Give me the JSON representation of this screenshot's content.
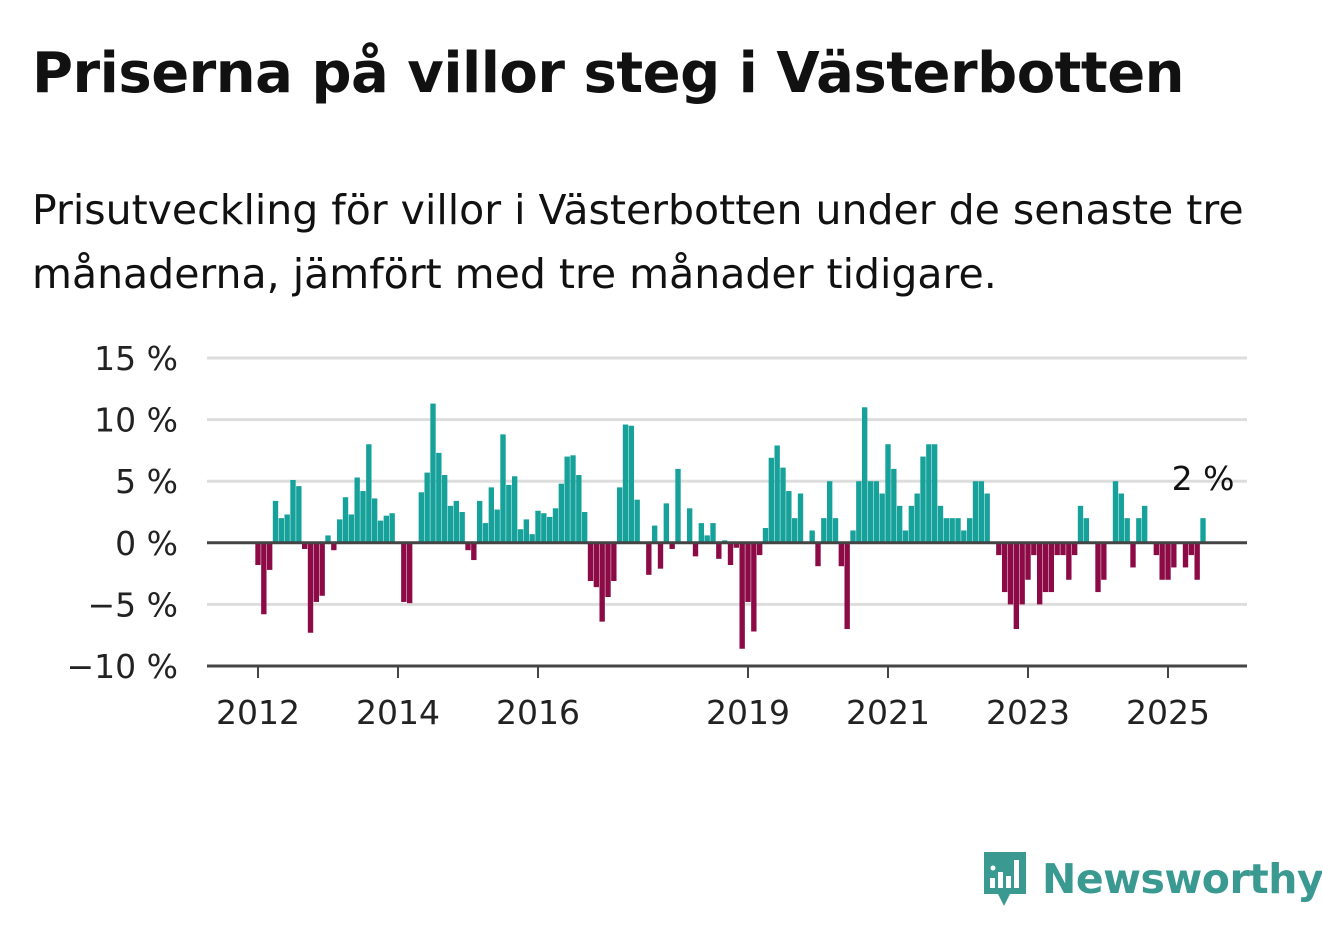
{
  "title": "Priserna på villor steg i Västerbotten",
  "subtitle": "Prisutveckling för villor i Västerbotten under de senaste tre månaderna, jämfört med tre månader tidigare.",
  "brand": {
    "name": "Newsworthy",
    "icon": "newsworthy-logo-icon",
    "color": "#3a9a92"
  },
  "colors": {
    "positive": "#16a29a",
    "negative": "#8c0a45",
    "grid": "#dddddd",
    "axis": "#444444"
  },
  "chart_data": {
    "type": "bar",
    "title": "",
    "xlabel": "",
    "ylabel": "",
    "ylim": [
      -10,
      15
    ],
    "y_ticks": [
      15,
      10,
      5,
      0,
      -5,
      -10
    ],
    "y_tick_labels": [
      "15 %",
      "10 %",
      "5 %",
      "0 %",
      "−5 %",
      "−10 %"
    ],
    "x_ticks": [
      2012,
      2014,
      2016,
      2019,
      2021,
      2023,
      2025
    ],
    "x_tick_labels": [
      "2012",
      "2014",
      "2016",
      "2019",
      "2021",
      "2023",
      "2025"
    ],
    "start": "2012-01",
    "frequency": "monthly",
    "last_label": "2 %",
    "grid": true,
    "values": [
      -1.8,
      -5.8,
      -2.2,
      3.4,
      2.0,
      2.3,
      5.1,
      4.6,
      -0.5,
      -7.3,
      -4.8,
      -4.3,
      0.6,
      -0.6,
      1.9,
      3.7,
      2.3,
      5.3,
      4.2,
      8.0,
      3.6,
      1.8,
      2.2,
      2.4,
      0.0,
      -4.8,
      -4.9,
      0.0,
      4.1,
      5.7,
      11.3,
      7.3,
      5.5,
      3.0,
      3.4,
      2.5,
      -0.6,
      -1.4,
      3.4,
      1.6,
      4.5,
      2.7,
      8.8,
      4.7,
      5.4,
      1.1,
      1.9,
      0.7,
      2.6,
      2.4,
      2.1,
      2.8,
      4.8,
      7.0,
      7.1,
      5.5,
      2.5,
      -3.1,
      -3.6,
      -6.4,
      -4.4,
      -3.1,
      4.5,
      9.6,
      9.5,
      3.5,
      0.0,
      -2.6,
      1.4,
      -2.1,
      3.2,
      -0.5,
      6.0,
      0.0,
      2.8,
      -1.1,
      1.6,
      0.6,
      1.6,
      -1.3,
      0.2,
      -1.8,
      -0.4,
      -8.6,
      -4.8,
      -7.2,
      -1.0,
      1.2,
      6.9,
      7.9,
      6.1,
      4.2,
      2.0,
      4.0,
      0.0,
      1.0,
      -1.9,
      2.0,
      5.0,
      2.0,
      -1.9,
      -7.0,
      1.0,
      5.0,
      11.0,
      5.0,
      5.0,
      4.0,
      8.0,
      6.0,
      3.0,
      1.0,
      3.0,
      4.0,
      7.0,
      8.0,
      8.0,
      3.0,
      2.0,
      2.0,
      2.0,
      1.0,
      2.0,
      5.0,
      5.0,
      4.0,
      0.0,
      -1.0,
      -4.0,
      -5.0,
      -7.0,
      -5.0,
      -3.0,
      -1.0,
      -5.0,
      -4.0,
      -4.0,
      -1.0,
      -1.0,
      -3.0,
      -1.0,
      3.0,
      2.0,
      0.0,
      -4.0,
      -3.0,
      0.0,
      5.0,
      4.0,
      2.0,
      -2.0,
      2.0,
      3.0,
      0.0,
      -1.0,
      -3.0,
      -3.0,
      -2.0,
      0.0,
      -2.0,
      -1.0,
      -3.0,
      2.0
    ]
  }
}
